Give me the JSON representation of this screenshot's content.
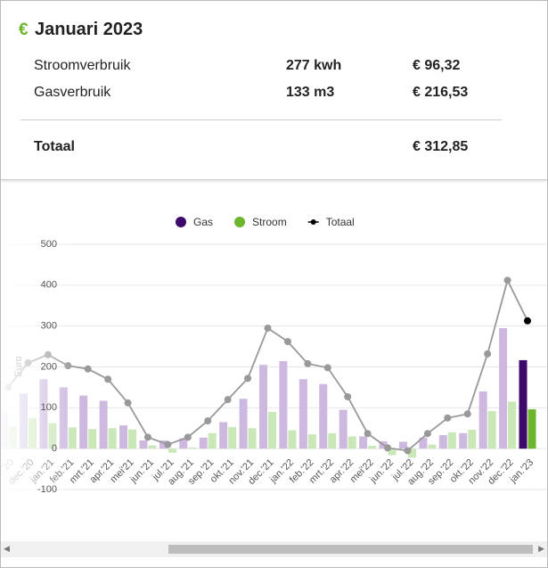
{
  "summary": {
    "icon": "€",
    "title": "Januari 2023",
    "rows": [
      [
        "Stroomverbruik",
        "277 kwh",
        "€ 96,32"
      ],
      [
        "Gasverbruik",
        "133 m3",
        "€ 216,53"
      ]
    ],
    "total": [
      "Totaal",
      "€ 312,85"
    ]
  },
  "chart_data": {
    "type": "bar",
    "y_label": "Euro",
    "categories": [
      "nov.'20",
      "dec.'20",
      "jan.'21",
      "feb.'21",
      "mrt.'21",
      "apr.'21",
      "mei'21",
      "jun.'21",
      "jul.'21",
      "aug.'21",
      "sep.'21",
      "okt.'21",
      "nov.'21",
      "dec.'21",
      "jan.'22",
      "feb.'22",
      "mrt.'22",
      "apr.'22",
      "mei'22",
      "jun.'22",
      "jul.'22",
      "aug.'22",
      "sep.'22",
      "okt.'22",
      "nov.'22",
      "dec.'22",
      "jan.'23"
    ],
    "series": [
      {
        "name": "Gas",
        "color": "#3d0a6b",
        "muted_color": "#cdb9e0",
        "values": [
          90,
          135,
          170,
          150,
          130,
          117,
          57,
          20,
          20,
          25,
          27,
          65,
          122,
          205,
          214,
          170,
          158,
          95,
          30,
          18,
          17,
          27,
          33,
          38,
          140,
          295,
          216.53
        ]
      },
      {
        "name": "Stroom",
        "color": "#6cb52d",
        "muted_color": "#c9e7b7",
        "values": [
          55,
          75,
          62,
          52,
          48,
          50,
          47,
          8,
          -10,
          3,
          38,
          53,
          50,
          90,
          45,
          35,
          38,
          30,
          7,
          -16,
          -22,
          10,
          40,
          46,
          92,
          115,
          96.32
        ]
      },
      {
        "name": "Totaal",
        "type": "line",
        "color": "#999999",
        "values": [
          150,
          210,
          230,
          203,
          195,
          170,
          112,
          28,
          10,
          28,
          68,
          120,
          172,
          295,
          262,
          208,
          198,
          127,
          37,
          2,
          -5,
          37,
          75,
          85,
          232,
          412,
          312.85
        ]
      }
    ],
    "ylim": [
      -100,
      500
    ],
    "yticks": [
      -100,
      0,
      100,
      200,
      300,
      400,
      500
    ],
    "grid": true,
    "legend": "top"
  }
}
